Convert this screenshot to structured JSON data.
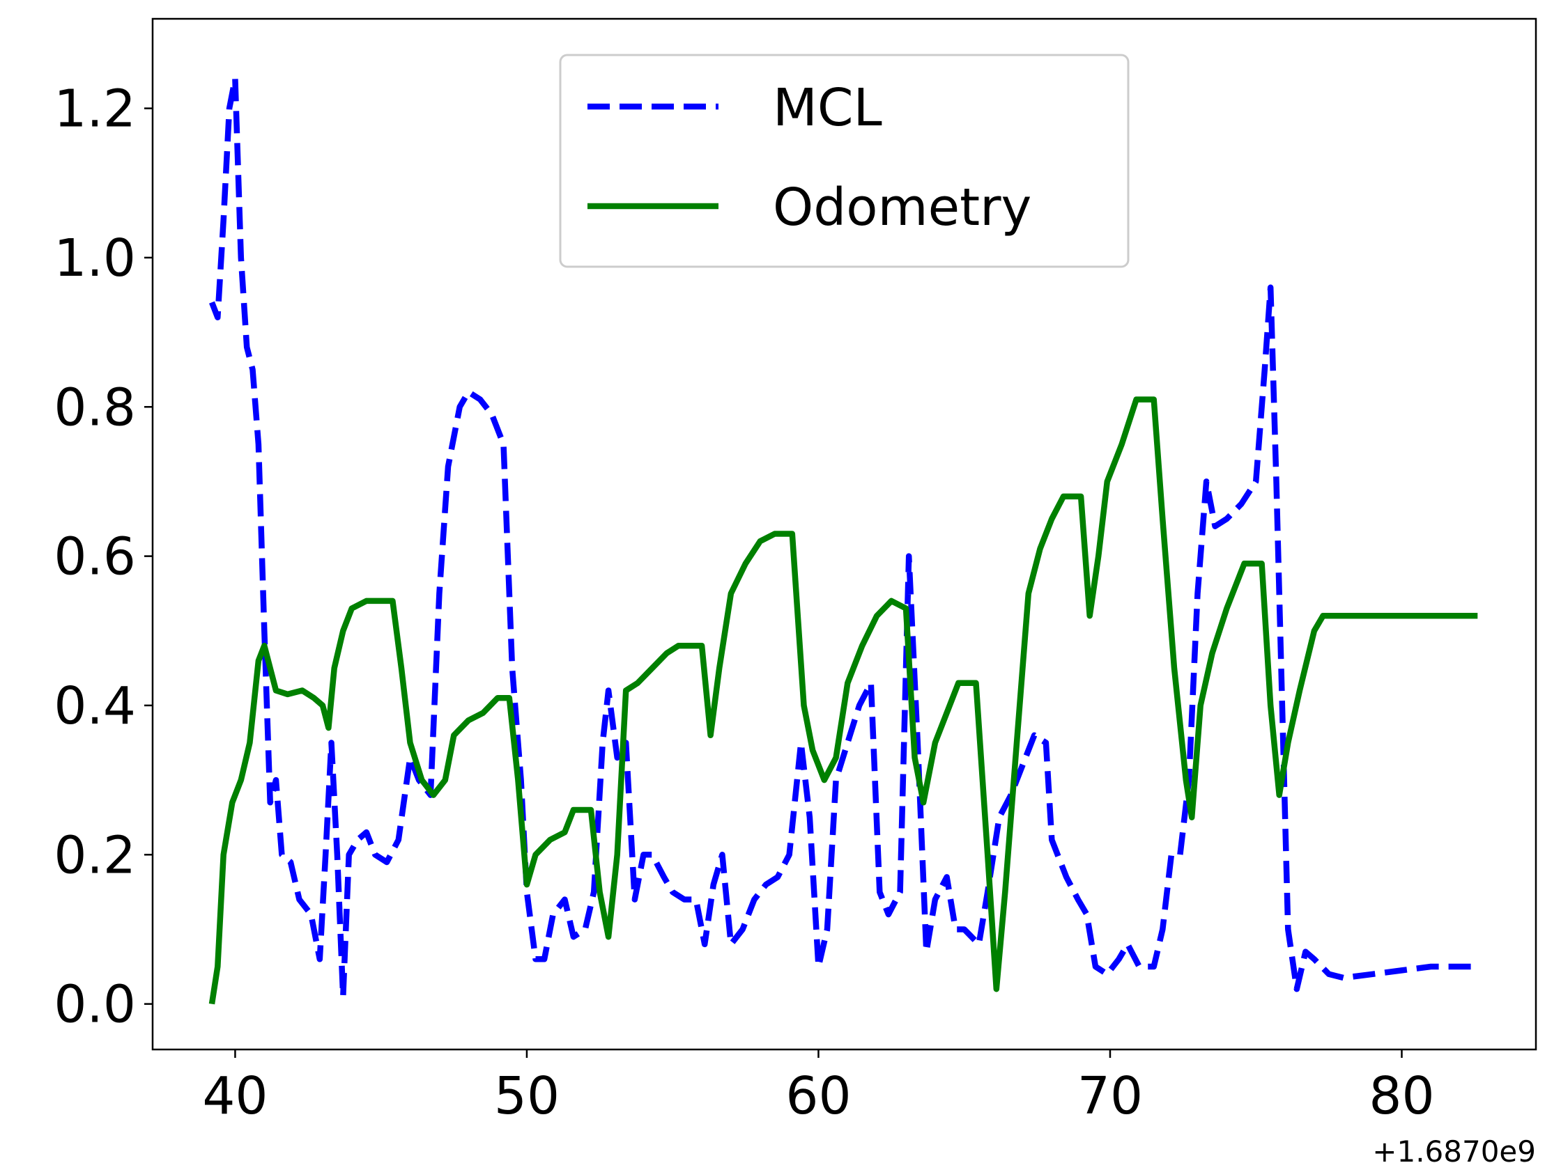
{
  "chart_data": {
    "type": "line",
    "offset_text": "+1.6870e9",
    "xlim": [
      37.17,
      84.6
    ],
    "ylim": [
      -0.061,
      1.32
    ],
    "xticks": [
      40,
      50,
      60,
      70,
      80
    ],
    "yticks": [
      {
        "value": 0,
        "label": "0.0"
      },
      0.2,
      0.4,
      0.6,
      0.8,
      {
        "value": 1,
        "label": "1.0"
      },
      1.2
    ],
    "grid": false,
    "legend": "upper center",
    "series": [
      {
        "name": "MCL",
        "color": "#0000ff",
        "dashed": true,
        "x": [
          39.2,
          39.4,
          39.6,
          39.8,
          40.0,
          40.2,
          40.4,
          40.6,
          40.8,
          41.0,
          41.2,
          41.4,
          41.6,
          41.9,
          42.2,
          42.6,
          42.9,
          43.1,
          43.3,
          43.5,
          43.7,
          43.9,
          44.2,
          44.5,
          44.8,
          45.2,
          45.6,
          46.0,
          46.3,
          46.7,
          47.0,
          47.3,
          47.7,
          48.0,
          48.4,
          48.8,
          49.2,
          49.5,
          49.8,
          50.0,
          50.3,
          50.6,
          50.9,
          51.3,
          51.6,
          52.0,
          52.3,
          52.6,
          52.8,
          53.1,
          53.4,
          53.7,
          54.0,
          54.3,
          54.7,
          55.0,
          55.4,
          55.8,
          56.1,
          56.4,
          56.7,
          57.0,
          57.4,
          57.8,
          58.2,
          58.6,
          59.0,
          59.4,
          59.7,
          60.0,
          60.3,
          60.6,
          61.0,
          61.4,
          61.8,
          62.1,
          62.4,
          62.8,
          63.1,
          63.4,
          63.7,
          64.0,
          64.4,
          64.7,
          65.0,
          65.5,
          65.8,
          66.2,
          66.6,
          67.0,
          67.4,
          67.8,
          68.0,
          68.5,
          68.9,
          69.2,
          69.5,
          69.9,
          70.3,
          70.6,
          71.0,
          71.5,
          71.8,
          72.1,
          72.4,
          72.7,
          73.0,
          73.3,
          73.6,
          74.0,
          74.5,
          75.0,
          75.3,
          75.5,
          75.7,
          75.9,
          76.1,
          76.4,
          76.7,
          77.0,
          77.5,
          78.0,
          79.0,
          80.0,
          81.0,
          82.4
        ],
        "values": [
          0.94,
          0.92,
          1.05,
          1.2,
          1.24,
          1.0,
          0.88,
          0.85,
          0.75,
          0.5,
          0.27,
          0.3,
          0.2,
          0.19,
          0.14,
          0.12,
          0.06,
          0.2,
          0.35,
          0.2,
          0.01,
          0.2,
          0.22,
          0.23,
          0.2,
          0.19,
          0.22,
          0.33,
          0.3,
          0.28,
          0.55,
          0.72,
          0.8,
          0.82,
          0.81,
          0.79,
          0.75,
          0.45,
          0.3,
          0.15,
          0.06,
          0.06,
          0.12,
          0.14,
          0.09,
          0.1,
          0.15,
          0.35,
          0.42,
          0.33,
          0.35,
          0.14,
          0.2,
          0.2,
          0.17,
          0.15,
          0.14,
          0.14,
          0.08,
          0.16,
          0.2,
          0.08,
          0.1,
          0.14,
          0.16,
          0.17,
          0.2,
          0.35,
          0.25,
          0.05,
          0.1,
          0.3,
          0.35,
          0.4,
          0.43,
          0.15,
          0.12,
          0.15,
          0.6,
          0.35,
          0.07,
          0.14,
          0.17,
          0.1,
          0.1,
          0.08,
          0.15,
          0.25,
          0.28,
          0.32,
          0.36,
          0.35,
          0.22,
          0.17,
          0.14,
          0.12,
          0.05,
          0.04,
          0.06,
          0.08,
          0.05,
          0.05,
          0.1,
          0.2,
          0.2,
          0.3,
          0.55,
          0.7,
          0.64,
          0.65,
          0.67,
          0.7,
          0.85,
          0.96,
          0.7,
          0.4,
          0.1,
          0.02,
          0.07,
          0.06,
          0.04,
          0.035,
          0.04,
          0.045,
          0.05,
          0.05
        ]
      },
      {
        "name": "Odometry",
        "color": "#008000",
        "dashed": false,
        "x": [
          39.2,
          39.4,
          39.6,
          39.9,
          40.2,
          40.5,
          40.8,
          41.0,
          41.4,
          41.8,
          42.3,
          42.7,
          43.0,
          43.2,
          43.4,
          43.7,
          44.0,
          44.5,
          45.0,
          45.4,
          45.7,
          46.0,
          46.4,
          46.8,
          47.2,
          47.5,
          48.0,
          48.5,
          49.0,
          49.4,
          49.7,
          50.0,
          50.3,
          50.8,
          51.3,
          51.6,
          52.2,
          52.5,
          52.8,
          53.1,
          53.4,
          53.8,
          54.3,
          54.8,
          55.2,
          56.0,
          56.3,
          56.6,
          57.0,
          57.5,
          58.0,
          58.5,
          59.1,
          59.5,
          59.8,
          60.2,
          60.6,
          61.0,
          61.5,
          62.0,
          62.5,
          63.0,
          63.3,
          63.6,
          64.0,
          64.4,
          64.8,
          65.4,
          65.8,
          66.1,
          66.4,
          66.8,
          67.2,
          67.6,
          68.0,
          68.4,
          69.0,
          69.3,
          69.6,
          69.9,
          70.4,
          70.9,
          71.5,
          71.8,
          72.2,
          72.6,
          72.8,
          73.1,
          73.5,
          74.0,
          74.6,
          75.2,
          75.5,
          75.8,
          76.1,
          76.5,
          77.0,
          77.3,
          80.0,
          82.6
        ],
        "values": [
          0.0,
          0.05,
          0.2,
          0.27,
          0.3,
          0.35,
          0.46,
          0.48,
          0.42,
          0.415,
          0.42,
          0.41,
          0.4,
          0.37,
          0.45,
          0.5,
          0.53,
          0.54,
          0.54,
          0.54,
          0.45,
          0.35,
          0.3,
          0.28,
          0.3,
          0.36,
          0.38,
          0.39,
          0.41,
          0.41,
          0.3,
          0.16,
          0.2,
          0.22,
          0.23,
          0.26,
          0.26,
          0.15,
          0.09,
          0.2,
          0.42,
          0.43,
          0.45,
          0.47,
          0.48,
          0.48,
          0.36,
          0.45,
          0.55,
          0.59,
          0.62,
          0.63,
          0.63,
          0.4,
          0.34,
          0.3,
          0.33,
          0.43,
          0.48,
          0.52,
          0.54,
          0.53,
          0.33,
          0.27,
          0.35,
          0.39,
          0.43,
          0.43,
          0.2,
          0.02,
          0.15,
          0.35,
          0.55,
          0.61,
          0.65,
          0.68,
          0.68,
          0.52,
          0.6,
          0.7,
          0.75,
          0.81,
          0.81,
          0.65,
          0.45,
          0.3,
          0.25,
          0.4,
          0.47,
          0.53,
          0.59,
          0.59,
          0.4,
          0.28,
          0.35,
          0.42,
          0.5,
          0.52,
          0.52,
          0.52
        ]
      }
    ]
  }
}
